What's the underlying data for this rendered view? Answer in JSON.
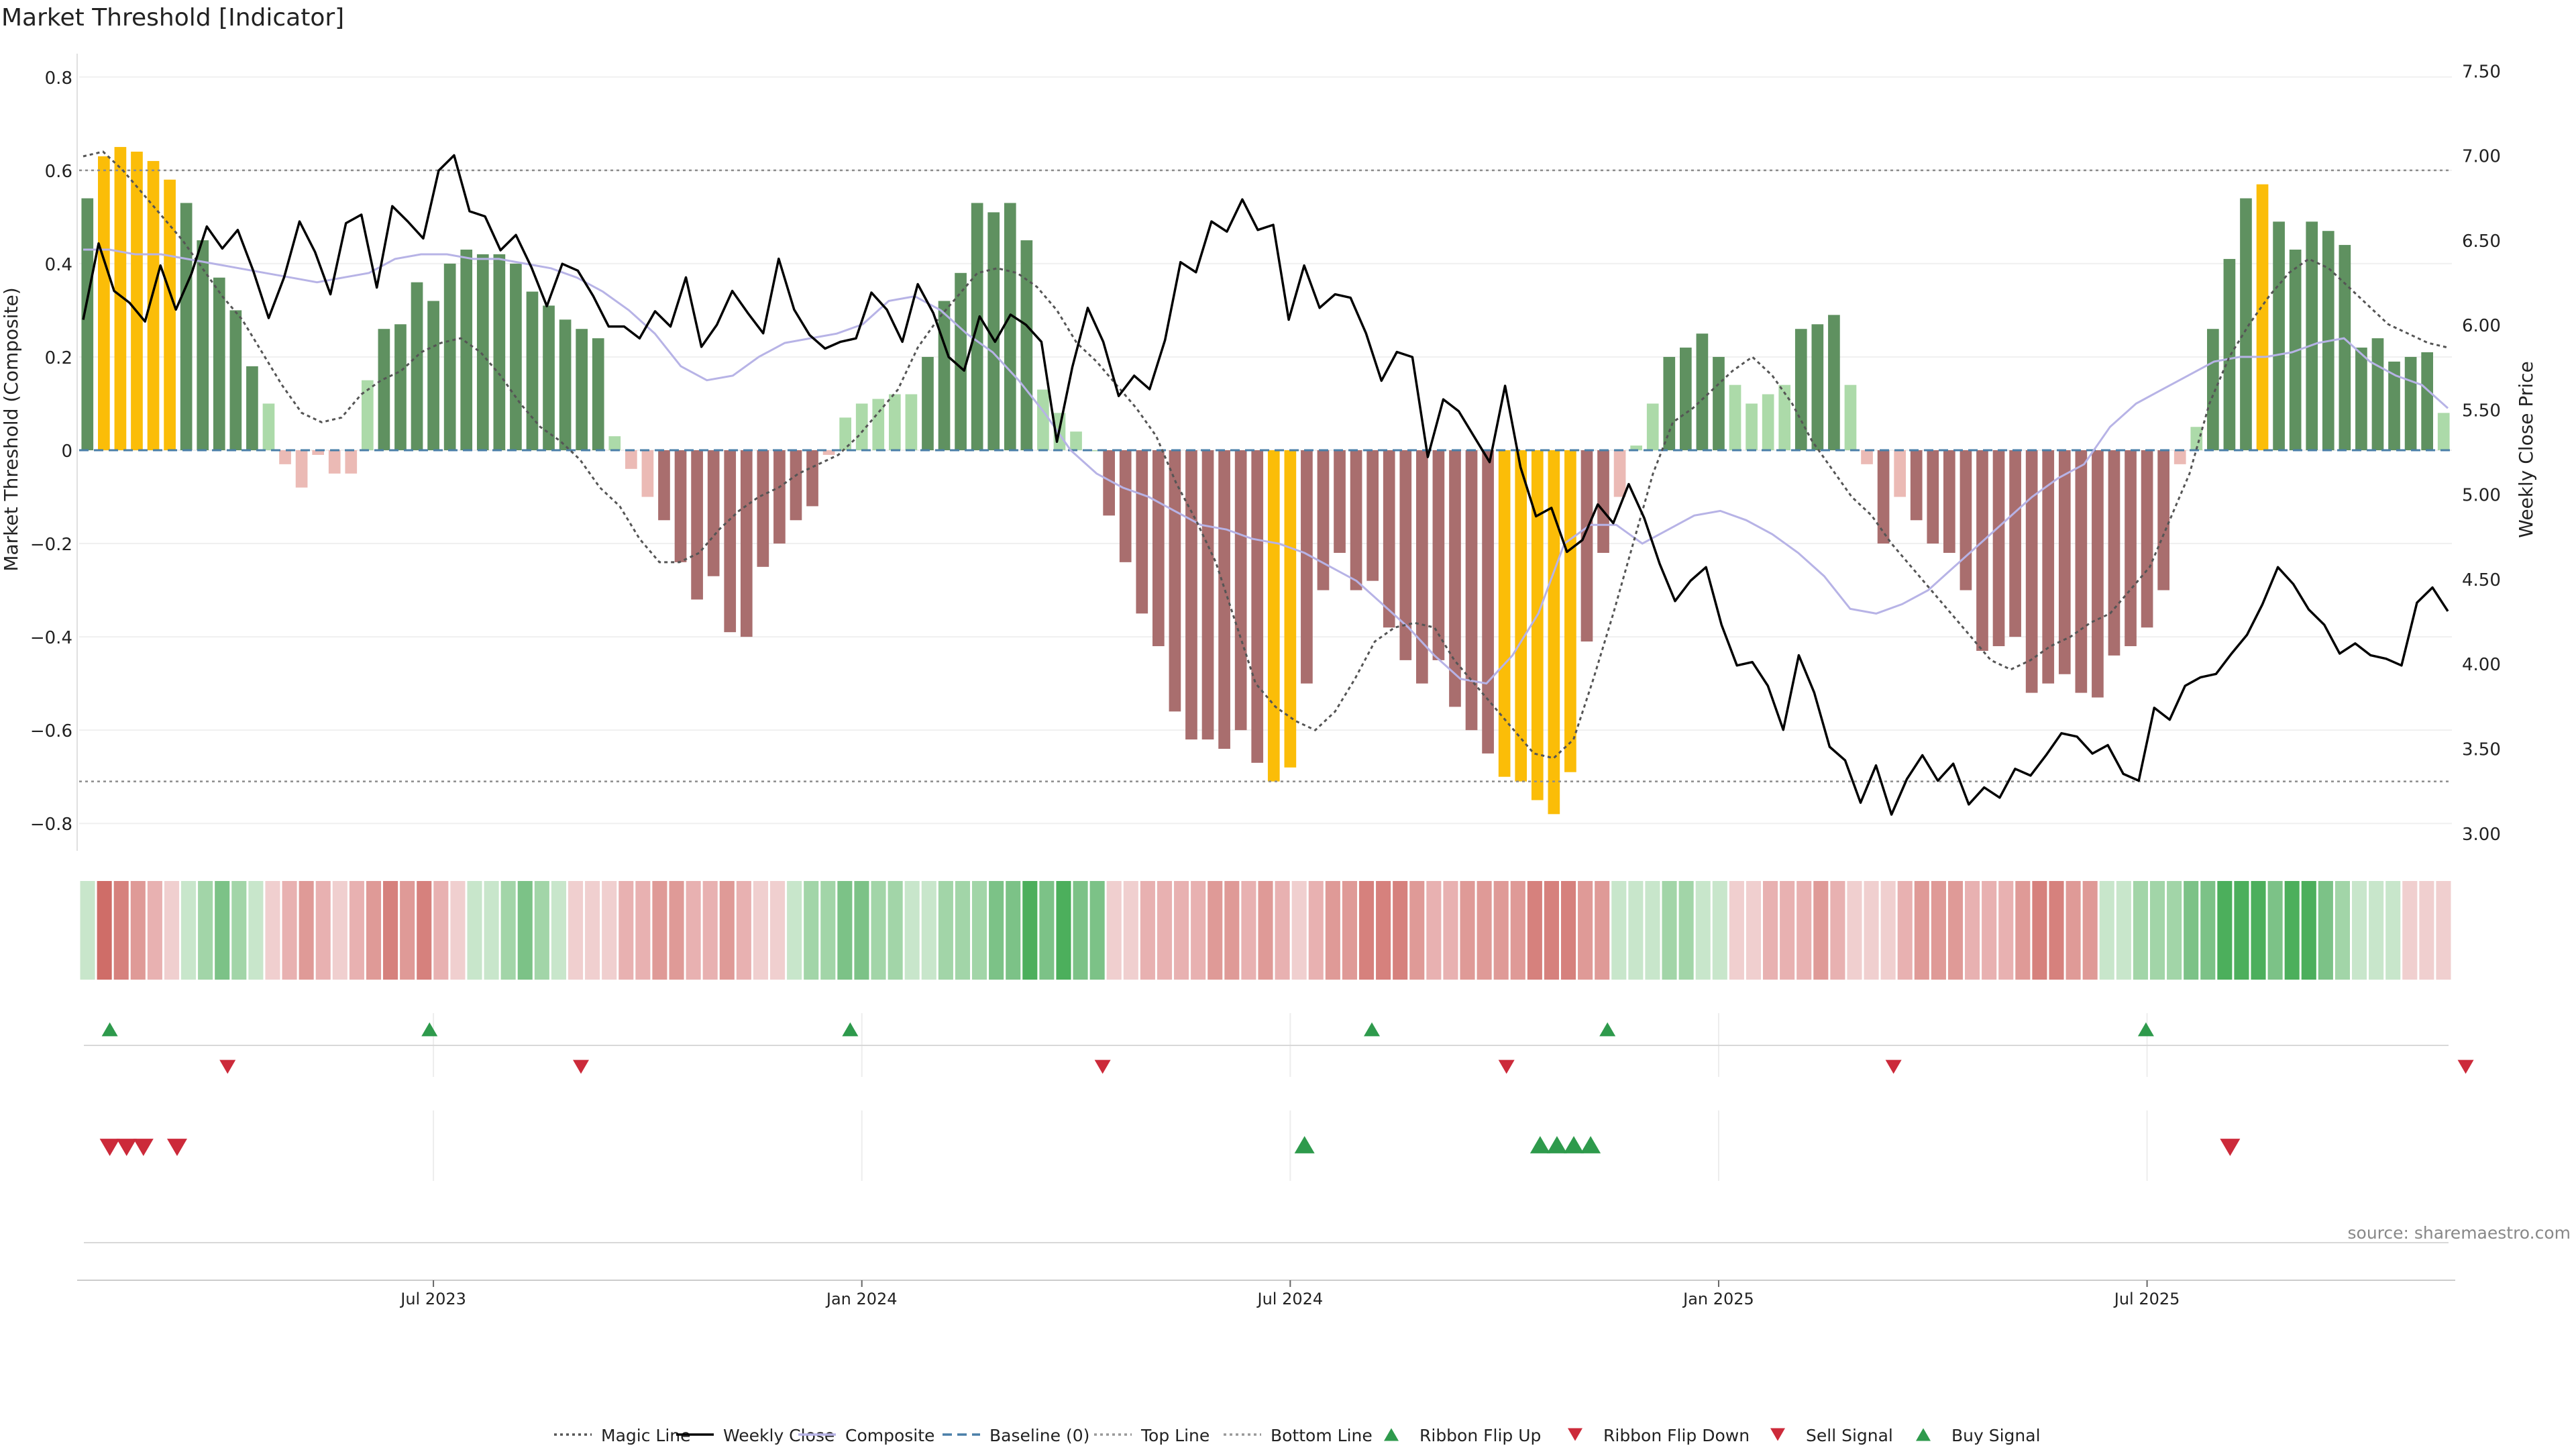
{
  "chart_data": {
    "type": "bar",
    "title": "Market Threshold [Indicator]",
    "ylabel_left": "Market Threshold (Composite)",
    "ylabel_right": "Weekly Close Price",
    "source": "source: sharemaestro.com",
    "ylim_left": [
      -0.85,
      0.85
    ],
    "ylim_right": [
      2.92,
      7.6
    ],
    "left_ticks": [
      "0.8",
      "0.6",
      "0.4",
      "0.2",
      "0",
      "−0.2",
      "−0.4",
      "−0.6",
      "−0.8"
    ],
    "left_tick_values": [
      0.8,
      0.6,
      0.4,
      0.2,
      0,
      -0.2,
      -0.4,
      -0.6,
      -0.8
    ],
    "right_ticks": [
      "7.50",
      "7.00",
      "6.50",
      "6.00",
      "5.50",
      "5.00",
      "4.50",
      "4.00",
      "3.50",
      "3.00"
    ],
    "right_tick_values": [
      7.5,
      7.0,
      6.5,
      6.0,
      5.5,
      5.0,
      4.5,
      4.0,
      3.5,
      3.0
    ],
    "x_ticks": [
      {
        "label": "Jul 2023",
        "index": 21
      },
      {
        "label": "Jan 2024",
        "index": 47
      },
      {
        "label": "Jul 2024",
        "index": 73
      },
      {
        "label": "Jan 2025",
        "index": 99
      },
      {
        "label": "Jul 2025",
        "index": 125
      }
    ],
    "top_line": 0.6,
    "bottom_line": -0.71,
    "baseline": 0,
    "composite_values": [
      0.54,
      0.63,
      0.65,
      0.64,
      0.62,
      0.58,
      0.53,
      0.45,
      0.37,
      0.3,
      0.18,
      0.1,
      -0.03,
      -0.08,
      -0.01,
      -0.05,
      -0.05,
      0.15,
      0.26,
      0.27,
      0.36,
      0.32,
      0.4,
      0.43,
      0.42,
      0.42,
      0.4,
      0.34,
      0.31,
      0.28,
      0.26,
      0.24,
      0.03,
      -0.04,
      -0.1,
      -0.15,
      -0.24,
      -0.32,
      -0.27,
      -0.39,
      -0.4,
      -0.25,
      -0.2,
      -0.15,
      -0.12,
      -0.01,
      0.07,
      0.1,
      0.11,
      0.12,
      0.12,
      0.2,
      0.32,
      0.38,
      0.53,
      0.51,
      0.53,
      0.45,
      0.13,
      0.08,
      0.04,
      0,
      -0.14,
      -0.24,
      -0.35,
      -0.42,
      -0.56,
      -0.62,
      -0.62,
      -0.64,
      -0.6,
      -0.67,
      -0.71,
      -0.68,
      -0.5,
      -0.3,
      -0.22,
      -0.3,
      -0.28,
      -0.38,
      -0.45,
      -0.5,
      -0.45,
      -0.55,
      -0.6,
      -0.65,
      -0.7,
      -0.71,
      -0.75,
      -0.78,
      -0.69,
      -0.41,
      -0.22,
      -0.1,
      0.01,
      0.1,
      0.2,
      0.22,
      0.25,
      0.2,
      0.14,
      0.1,
      0.12,
      0.14,
      0.26,
      0.27,
      0.29,
      0.14,
      -0.03,
      -0.2,
      -0.1,
      -0.15,
      -0.2,
      -0.22,
      -0.3,
      -0.43,
      -0.42,
      -0.4,
      -0.52,
      -0.5,
      -0.48,
      -0.52,
      -0.53,
      -0.44,
      -0.42,
      -0.38,
      -0.3,
      -0.03,
      0.05,
      0.26,
      0.41,
      0.54,
      0.57,
      0.49,
      0.43,
      0.49,
      0.47,
      0.44,
      0.22,
      0.24,
      0.19,
      0.2,
      0.21,
      0.08
    ],
    "bar_colors": {
      "pos_strong": "#5f9160",
      "pos_weak": "#acdaa9",
      "neg_strong": "#a96e6e",
      "neg_weak": "#ebbab5",
      "extreme": "#fbbd08"
    },
    "weekly_close": [
      6.03,
      6.48,
      6.2,
      6.13,
      6.02,
      6.35,
      6.09,
      6.3,
      6.58,
      6.45,
      6.56,
      6.32,
      6.04,
      6.28,
      6.61,
      6.43,
      6.18,
      6.6,
      6.65,
      6.22,
      6.7,
      6.61,
      6.51,
      6.91,
      7.0,
      6.67,
      6.64,
      6.44,
      6.53,
      6.34,
      6.11,
      6.36,
      6.32,
      6.17,
      5.99,
      5.99,
      5.92,
      6.08,
      5.99,
      6.28,
      5.87,
      6.0,
      6.2,
      6.07,
      5.95,
      6.39,
      6.09,
      5.94,
      5.86,
      5.9,
      5.92,
      6.19,
      6.09,
      5.9,
      6.24,
      6.07,
      5.81,
      5.73,
      6.05,
      5.9,
      6.06,
      6.0,
      5.9,
      5.31,
      5.75,
      6.1,
      5.9,
      5.58,
      5.7,
      5.62,
      5.91,
      6.37,
      6.31,
      6.61,
      6.55,
      6.74,
      6.56,
      6.59,
      6.03,
      6.35,
      6.1,
      6.18,
      6.16,
      5.95,
      5.67,
      5.84,
      5.81,
      5.22,
      5.56,
      5.49,
      5.34,
      5.19,
      5.64,
      5.16,
      4.87,
      4.92,
      4.66,
      4.73,
      4.94,
      4.83,
      5.06,
      4.86,
      4.59,
      4.37,
      4.49,
      4.57,
      4.23,
      3.99,
      4.01,
      3.87,
      3.61,
      4.05,
      3.83,
      3.51,
      3.43,
      3.18,
      3.4,
      3.11,
      3.32,
      3.46,
      3.31,
      3.41,
      3.17,
      3.27,
      3.21,
      3.38,
      3.34,
      3.46,
      3.59,
      3.57,
      3.47,
      3.52,
      3.35,
      3.31,
      3.74,
      3.67,
      3.87,
      3.92,
      3.94,
      4.06,
      4.17,
      4.35,
      4.57,
      4.47,
      4.32,
      4.23,
      4.06,
      4.12,
      4.05,
      4.03,
      3.99,
      4.36,
      4.45,
      4.31
    ],
    "magic_line": [
      0.63,
      0.64,
      0.6,
      0.55,
      0.5,
      0.45,
      0.39,
      0.33,
      0.28,
      0.21,
      0.14,
      0.08,
      0.06,
      0.07,
      0.12,
      0.15,
      0.17,
      0.21,
      0.23,
      0.24,
      0.21,
      0.16,
      0.1,
      0.05,
      0.02,
      -0.02,
      -0.08,
      -0.12,
      -0.19,
      -0.24,
      -0.24,
      -0.22,
      -0.17,
      -0.13,
      -0.1,
      -0.08,
      -0.05,
      -0.03,
      -0.01,
      0.03,
      0.08,
      0.13,
      0.22,
      0.28,
      0.33,
      0.38,
      0.39,
      0.38,
      0.35,
      0.3,
      0.23,
      0.19,
      0.14,
      0.09,
      0.03,
      -0.07,
      -0.15,
      -0.24,
      -0.37,
      -0.5,
      -0.55,
      -0.58,
      -0.6,
      -0.56,
      -0.49,
      -0.41,
      -0.38,
      -0.37,
      -0.38,
      -0.45,
      -0.5,
      -0.55,
      -0.6,
      -0.65,
      -0.66,
      -0.62,
      -0.49,
      -0.35,
      -0.2,
      -0.05,
      0.06,
      0.09,
      0.13,
      0.17,
      0.2,
      0.16,
      0.1,
      0.02,
      -0.04,
      -0.1,
      -0.14,
      -0.2,
      -0.25,
      -0.3,
      -0.35,
      -0.4,
      -0.45,
      -0.47,
      -0.45,
      -0.42,
      -0.4,
      -0.37,
      -0.35,
      -0.3,
      -0.25,
      -0.15,
      -0.05,
      0.1,
      0.2,
      0.27,
      0.33,
      0.38,
      0.41,
      0.39,
      0.35,
      0.31,
      0.27,
      0.25,
      0.23,
      0.22
    ],
    "composite_line": [
      0.43,
      0.43,
      0.42,
      0.42,
      0.41,
      0.4,
      0.39,
      0.38,
      0.37,
      0.36,
      0.37,
      0.38,
      0.41,
      0.42,
      0.42,
      0.41,
      0.41,
      0.4,
      0.39,
      0.37,
      0.34,
      0.3,
      0.25,
      0.18,
      0.15,
      0.16,
      0.2,
      0.23,
      0.24,
      0.25,
      0.27,
      0.32,
      0.33,
      0.3,
      0.25,
      0.21,
      0.15,
      0.08,
      0,
      -0.05,
      -0.08,
      -0.1,
      -0.13,
      -0.16,
      -0.17,
      -0.19,
      -0.2,
      -0.22,
      -0.25,
      -0.28,
      -0.33,
      -0.38,
      -0.44,
      -0.49,
      -0.5,
      -0.44,
      -0.35,
      -0.2,
      -0.16,
      -0.16,
      -0.2,
      -0.17,
      -0.14,
      -0.13,
      -0.15,
      -0.18,
      -0.22,
      -0.27,
      -0.34,
      -0.35,
      -0.33,
      -0.3,
      -0.25,
      -0.2,
      -0.15,
      -0.1,
      -0.06,
      -0.03,
      0.05,
      0.1,
      0.13,
      0.16,
      0.19,
      0.2,
      0.2,
      0.21,
      0.23,
      0.24,
      0.19,
      0.16,
      0.14,
      0.09
    ],
    "ribbon_steps": [
      1,
      -5,
      -4,
      -3,
      -2,
      -1,
      1,
      2,
      3,
      2,
      1,
      -1,
      -2,
      -3,
      -2,
      -1,
      -2,
      -3,
      -4,
      -3,
      -4,
      -2,
      -1,
      1,
      1,
      2,
      3,
      2,
      1,
      -1,
      -1,
      -1,
      -2,
      -2,
      -3,
      -3,
      -2,
      -2,
      -3,
      -2,
      -1,
      -1,
      1,
      2,
      2,
      3,
      3,
      2,
      2,
      1,
      1,
      2,
      2,
      2,
      3,
      3,
      4,
      3,
      4,
      3,
      3,
      -1,
      -1,
      -2,
      -2,
      -2,
      -2,
      -3,
      -3,
      -2,
      -3,
      -2,
      -1,
      -2,
      -3,
      -3,
      -4,
      -4,
      -4,
      -3,
      -2,
      -2,
      -3,
      -3,
      -3,
      -3,
      -4,
      -4,
      -4,
      -3,
      -3,
      1,
      1,
      1,
      2,
      2,
      1,
      1,
      -1,
      -1,
      -2,
      -2,
      -2,
      -3,
      -2,
      -1,
      -1,
      -1,
      -2,
      -3,
      -3,
      -3,
      -2,
      -2,
      -2,
      -3,
      -4,
      -4,
      -3,
      -3,
      1,
      1,
      2,
      2,
      2,
      3,
      3,
      4,
      4,
      4,
      3,
      4,
      4,
      3,
      2,
      1,
      1,
      1,
      -1,
      -1,
      -1
    ],
    "ribbon_flip_up_indices": [
      1,
      20,
      45,
      76,
      90,
      122
    ],
    "ribbon_flip_down_indices": [
      8,
      29,
      60,
      84,
      107,
      141
    ],
    "sell_signal_indices": [
      1,
      2,
      3,
      5,
      127
    ],
    "buy_signal_indices": [
      72,
      86,
      87,
      88,
      89
    ],
    "legend": [
      {
        "label": "Magic Line",
        "kind": "dotted-line",
        "color": "#555555"
      },
      {
        "label": "Weekly Close",
        "kind": "solid-line",
        "color": "#000000"
      },
      {
        "label": "Composite",
        "kind": "solid-line",
        "color": "#b7b3e6"
      },
      {
        "label": "Baseline (0)",
        "kind": "dashed-line",
        "color": "#4a7fa8"
      },
      {
        "label": "Top Line",
        "kind": "dotted-line",
        "color": "#999999"
      },
      {
        "label": "Bottom Line",
        "kind": "dotted-line",
        "color": "#999999"
      },
      {
        "label": "Ribbon Flip Up",
        "kind": "triangle-up",
        "color": "#2e9a4c"
      },
      {
        "label": "Ribbon Flip Down",
        "kind": "triangle-down",
        "color": "#cc2a3a"
      },
      {
        "label": "Sell Signal",
        "kind": "triangle-down",
        "color": "#cc2a3a"
      },
      {
        "label": "Buy Signal",
        "kind": "triangle-up",
        "color": "#2e9a4c"
      }
    ]
  }
}
